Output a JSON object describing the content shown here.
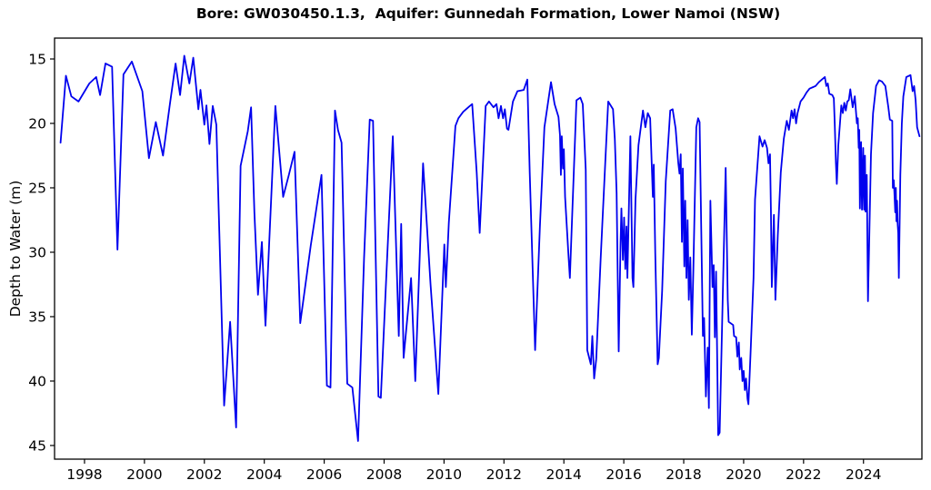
{
  "title": "Bore: GW030450.1.3,  Aquifer: Gunnedah Formation, Lower Namoi (NSW)",
  "chart_data": {
    "type": "line",
    "title": "Bore: GW030450.1.3,  Aquifer: Gunnedah Formation, Lower Namoi (NSW)",
    "xlabel": "",
    "ylabel": "Depth to Water (m)",
    "line_color": "#0000EE",
    "axis_color": "#000000",
    "background_color": "#FFFFFF",
    "grid": false,
    "legend": null,
    "y_axis_inverted": true,
    "xlim": [
      1997.0,
      2025.95
    ],
    "ylim": [
      46.06,
      13.38
    ],
    "x_ticks": [
      1998,
      2000,
      2002,
      2004,
      2006,
      2008,
      2010,
      2012,
      2014,
      2016,
      2018,
      2020,
      2022,
      2024
    ],
    "y_ticks": [
      15,
      20,
      25,
      30,
      35,
      40,
      45
    ],
    "series": [
      {
        "name": "depth_to_water",
        "points": [
          [
            1997.2,
            21.5
          ],
          [
            1997.38,
            16.3
          ],
          [
            1997.56,
            17.9
          ],
          [
            1997.8,
            18.3
          ],
          [
            1998.16,
            16.9
          ],
          [
            1998.39,
            16.4
          ],
          [
            1998.52,
            17.8
          ],
          [
            1998.7,
            15.35
          ],
          [
            1998.92,
            15.6
          ],
          [
            1999.1,
            29.8
          ],
          [
            1999.3,
            16.2
          ],
          [
            1999.58,
            15.2
          ],
          [
            1999.93,
            17.5
          ],
          [
            2000.15,
            22.7
          ],
          [
            2000.38,
            19.9
          ],
          [
            2000.62,
            22.5
          ],
          [
            2000.85,
            18.5
          ],
          [
            2001.04,
            15.35
          ],
          [
            2001.19,
            17.8
          ],
          [
            2001.33,
            14.75
          ],
          [
            2001.5,
            16.9
          ],
          [
            2001.63,
            14.9
          ],
          [
            2001.8,
            18.9
          ],
          [
            2001.87,
            17.4
          ],
          [
            2002.0,
            20.1
          ],
          [
            2002.07,
            18.6
          ],
          [
            2002.17,
            21.6
          ],
          [
            2002.28,
            18.65
          ],
          [
            2002.4,
            20.1
          ],
          [
            2002.66,
            41.9
          ],
          [
            2002.86,
            35.4
          ],
          [
            2003.06,
            43.6
          ],
          [
            2003.21,
            23.3
          ],
          [
            2003.45,
            20.6
          ],
          [
            2003.56,
            18.75
          ],
          [
            2003.67,
            26.9
          ],
          [
            2003.79,
            33.3
          ],
          [
            2003.92,
            29.2
          ],
          [
            2004.04,
            35.7
          ],
          [
            2004.37,
            18.65
          ],
          [
            2004.63,
            25.7
          ],
          [
            2004.82,
            24.0
          ],
          [
            2005.01,
            22.2
          ],
          [
            2005.2,
            35.5
          ],
          [
            2005.55,
            29.5
          ],
          [
            2005.91,
            24.0
          ],
          [
            2006.09,
            40.35
          ],
          [
            2006.21,
            40.5
          ],
          [
            2006.36,
            19.0
          ],
          [
            2006.46,
            20.5
          ],
          [
            2006.58,
            21.5
          ],
          [
            2006.77,
            40.2
          ],
          [
            2006.94,
            40.5
          ],
          [
            2007.13,
            44.65
          ],
          [
            2007.33,
            30.5
          ],
          [
            2007.52,
            19.7
          ],
          [
            2007.63,
            19.8
          ],
          [
            2007.81,
            41.2
          ],
          [
            2007.89,
            41.3
          ],
          [
            2008.1,
            30.5
          ],
          [
            2008.29,
            21.0
          ],
          [
            2008.49,
            36.5
          ],
          [
            2008.57,
            27.8
          ],
          [
            2008.65,
            38.2
          ],
          [
            2008.9,
            32.0
          ],
          [
            2009.04,
            40.0
          ],
          [
            2009.3,
            23.1
          ],
          [
            2009.55,
            32.5
          ],
          [
            2009.81,
            41.0
          ],
          [
            2010.01,
            29.4
          ],
          [
            2010.06,
            32.7
          ],
          [
            2010.16,
            27.7
          ],
          [
            2010.38,
            20.2
          ],
          [
            2010.48,
            19.6
          ],
          [
            2010.64,
            19.1
          ],
          [
            2010.86,
            18.65
          ],
          [
            2010.94,
            18.5
          ],
          [
            2011.09,
            23.8
          ],
          [
            2011.19,
            28.5
          ],
          [
            2011.39,
            18.65
          ],
          [
            2011.5,
            18.3
          ],
          [
            2011.65,
            18.75
          ],
          [
            2011.75,
            18.5
          ],
          [
            2011.82,
            19.6
          ],
          [
            2011.9,
            18.65
          ],
          [
            2011.97,
            19.6
          ],
          [
            2012.03,
            18.9
          ],
          [
            2012.1,
            20.4
          ],
          [
            2012.15,
            20.5
          ],
          [
            2012.3,
            18.3
          ],
          [
            2012.45,
            17.5
          ],
          [
            2012.66,
            17.4
          ],
          [
            2012.78,
            16.6
          ],
          [
            2012.86,
            23.8
          ],
          [
            2013.04,
            37.6
          ],
          [
            2013.2,
            28.0
          ],
          [
            2013.35,
            20.3
          ],
          [
            2013.57,
            16.8
          ],
          [
            2013.69,
            18.5
          ],
          [
            2013.82,
            19.5
          ],
          [
            2013.87,
            20.9
          ],
          [
            2013.9,
            24.0
          ],
          [
            2013.93,
            21.0
          ],
          [
            2013.97,
            23.5
          ],
          [
            2014.0,
            22.0
          ],
          [
            2014.04,
            25.7
          ],
          [
            2014.15,
            30.1
          ],
          [
            2014.2,
            32.0
          ],
          [
            2014.42,
            18.2
          ],
          [
            2014.55,
            18.0
          ],
          [
            2014.63,
            18.5
          ],
          [
            2014.73,
            23.6
          ],
          [
            2014.78,
            37.6
          ],
          [
            2014.9,
            38.7
          ],
          [
            2014.95,
            36.5
          ],
          [
            2015.01,
            39.8
          ],
          [
            2015.08,
            38.3
          ],
          [
            2015.23,
            30.4
          ],
          [
            2015.38,
            23.1
          ],
          [
            2015.48,
            18.3
          ],
          [
            2015.64,
            18.9
          ],
          [
            2015.7,
            21.2
          ],
          [
            2015.76,
            25.4
          ],
          [
            2015.83,
            37.7
          ],
          [
            2015.89,
            29.4
          ],
          [
            2015.92,
            26.6
          ],
          [
            2015.97,
            30.6
          ],
          [
            2016.01,
            27.3
          ],
          [
            2016.05,
            31.3
          ],
          [
            2016.09,
            28.0
          ],
          [
            2016.12,
            32.0
          ],
          [
            2016.22,
            21.0
          ],
          [
            2016.29,
            32.0
          ],
          [
            2016.32,
            32.7
          ],
          [
            2016.39,
            25.9
          ],
          [
            2016.49,
            21.7
          ],
          [
            2016.64,
            19.0
          ],
          [
            2016.72,
            20.3
          ],
          [
            2016.8,
            19.2
          ],
          [
            2016.88,
            19.6
          ],
          [
            2016.97,
            25.7
          ],
          [
            2017.0,
            23.2
          ],
          [
            2017.05,
            30.1
          ],
          [
            2017.13,
            38.7
          ],
          [
            2017.17,
            38.2
          ],
          [
            2017.28,
            33.0
          ],
          [
            2017.4,
            24.5
          ],
          [
            2017.55,
            19.0
          ],
          [
            2017.63,
            18.9
          ],
          [
            2017.73,
            20.4
          ],
          [
            2017.82,
            23.1
          ],
          [
            2017.86,
            23.9
          ],
          [
            2017.9,
            22.4
          ],
          [
            2017.94,
            29.2
          ],
          [
            2017.97,
            23.5
          ],
          [
            2018.02,
            31.1
          ],
          [
            2018.05,
            26.0
          ],
          [
            2018.09,
            32.0
          ],
          [
            2018.13,
            27.5
          ],
          [
            2018.17,
            33.7
          ],
          [
            2018.22,
            30.4
          ],
          [
            2018.27,
            36.4
          ],
          [
            2018.32,
            31.5
          ],
          [
            2018.42,
            20.3
          ],
          [
            2018.48,
            19.6
          ],
          [
            2018.53,
            19.9
          ],
          [
            2018.64,
            36.5
          ],
          [
            2018.68,
            35.1
          ],
          [
            2018.74,
            41.2
          ],
          [
            2018.8,
            37.4
          ],
          [
            2018.84,
            42.1
          ],
          [
            2018.89,
            26.0
          ],
          [
            2018.96,
            32.7
          ],
          [
            2019.0,
            31.0
          ],
          [
            2019.04,
            36.6
          ],
          [
            2019.08,
            31.5
          ],
          [
            2019.15,
            44.2
          ],
          [
            2019.2,
            44.0
          ],
          [
            2019.4,
            23.45
          ],
          [
            2019.47,
            33.7
          ],
          [
            2019.5,
            35.4
          ],
          [
            2019.65,
            35.65
          ],
          [
            2019.68,
            36.5
          ],
          [
            2019.75,
            36.6
          ],
          [
            2019.79,
            38.1
          ],
          [
            2019.84,
            37.0
          ],
          [
            2019.87,
            39.1
          ],
          [
            2019.92,
            38.2
          ],
          [
            2019.96,
            40.0
          ],
          [
            2020.0,
            39.2
          ],
          [
            2020.04,
            40.7
          ],
          [
            2020.08,
            39.8
          ],
          [
            2020.13,
            41.4
          ],
          [
            2020.16,
            41.8
          ],
          [
            2020.23,
            37.9
          ],
          [
            2020.33,
            32.0
          ],
          [
            2020.38,
            25.9
          ],
          [
            2020.53,
            21.0
          ],
          [
            2020.63,
            21.8
          ],
          [
            2020.7,
            21.3
          ],
          [
            2020.78,
            21.9
          ],
          [
            2020.83,
            23.1
          ],
          [
            2020.88,
            22.4
          ],
          [
            2020.91,
            26.7
          ],
          [
            2020.94,
            32.7
          ],
          [
            2021.01,
            27.1
          ],
          [
            2021.06,
            33.7
          ],
          [
            2021.14,
            28.7
          ],
          [
            2021.24,
            23.8
          ],
          [
            2021.34,
            21.2
          ],
          [
            2021.44,
            19.8
          ],
          [
            2021.51,
            20.5
          ],
          [
            2021.6,
            19.0
          ],
          [
            2021.65,
            19.6
          ],
          [
            2021.7,
            18.9
          ],
          [
            2021.75,
            20.0
          ],
          [
            2021.8,
            19.2
          ],
          [
            2021.9,
            18.3
          ],
          [
            2022.0,
            18.0
          ],
          [
            2022.1,
            17.6
          ],
          [
            2022.2,
            17.3
          ],
          [
            2022.3,
            17.2
          ],
          [
            2022.4,
            17.1
          ],
          [
            2022.51,
            16.8
          ],
          [
            2022.61,
            16.6
          ],
          [
            2022.71,
            16.4
          ],
          [
            2022.76,
            17.1
          ],
          [
            2022.81,
            16.9
          ],
          [
            2022.86,
            17.7
          ],
          [
            2022.96,
            17.8
          ],
          [
            2023.01,
            18.05
          ],
          [
            2023.04,
            20.0
          ],
          [
            2023.08,
            23.1
          ],
          [
            2023.11,
            24.7
          ],
          [
            2023.16,
            21.7
          ],
          [
            2023.26,
            18.6
          ],
          [
            2023.31,
            19.2
          ],
          [
            2023.36,
            18.4
          ],
          [
            2023.41,
            19.0
          ],
          [
            2023.46,
            18.3
          ],
          [
            2023.51,
            18.2
          ],
          [
            2023.56,
            17.35
          ],
          [
            2023.64,
            18.75
          ],
          [
            2023.71,
            17.9
          ],
          [
            2023.78,
            20.0
          ],
          [
            2023.81,
            19.6
          ],
          [
            2023.84,
            21.9
          ],
          [
            2023.86,
            20.5
          ],
          [
            2023.88,
            26.6
          ],
          [
            2023.92,
            21.45
          ],
          [
            2023.95,
            26.7
          ],
          [
            2023.99,
            21.9
          ],
          [
            2024.02,
            26.7
          ],
          [
            2024.05,
            22.5
          ],
          [
            2024.07,
            26.85
          ],
          [
            2024.11,
            24.0
          ],
          [
            2024.15,
            33.8
          ],
          [
            2024.25,
            22.4
          ],
          [
            2024.32,
            19.2
          ],
          [
            2024.42,
            17.1
          ],
          [
            2024.52,
            16.65
          ],
          [
            2024.62,
            16.76
          ],
          [
            2024.73,
            17.1
          ],
          [
            2024.83,
            18.75
          ],
          [
            2024.88,
            19.7
          ],
          [
            2024.96,
            19.8
          ],
          [
            2024.98,
            25.0
          ],
          [
            2025.01,
            24.4
          ],
          [
            2025.03,
            25.3
          ],
          [
            2025.06,
            26.9
          ],
          [
            2025.08,
            25.0
          ],
          [
            2025.1,
            27.6
          ],
          [
            2025.12,
            26.0
          ],
          [
            2025.14,
            27.8
          ],
          [
            2025.16,
            28.5
          ],
          [
            2025.18,
            32.0
          ],
          [
            2025.23,
            24.0
          ],
          [
            2025.28,
            20.0
          ],
          [
            2025.33,
            17.9
          ],
          [
            2025.43,
            16.4
          ],
          [
            2025.57,
            16.25
          ],
          [
            2025.64,
            17.5
          ],
          [
            2025.69,
            17.1
          ],
          [
            2025.74,
            18.2
          ],
          [
            2025.79,
            20.3
          ],
          [
            2025.87,
            21.0
          ]
        ]
      }
    ]
  }
}
